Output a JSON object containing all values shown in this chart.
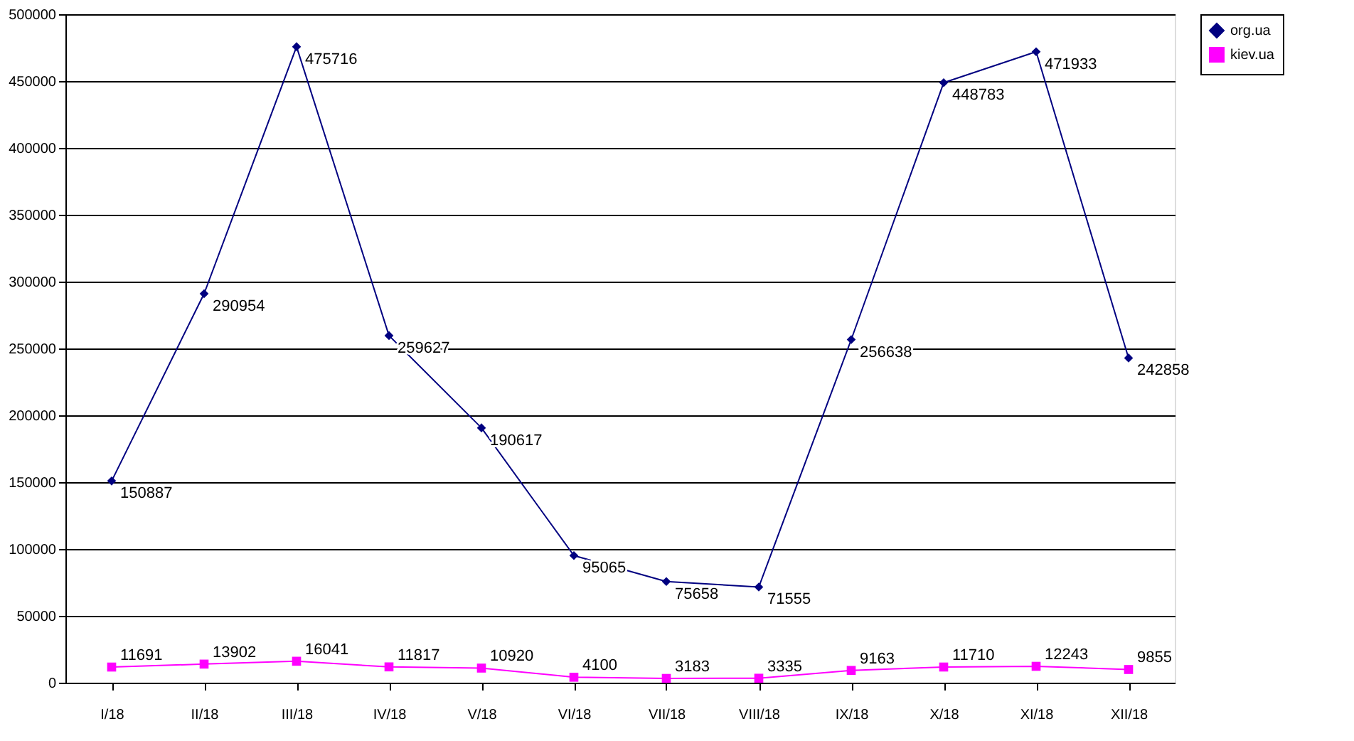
{
  "chart_data": {
    "type": "line",
    "categories": [
      "I/18",
      "II/18",
      "III/18",
      "IV/18",
      "V/18",
      "VI/18",
      "VII/18",
      "VIII/18",
      "IX/18",
      "X/18",
      "XI/18",
      "XII/18"
    ],
    "series": [
      {
        "name": "org.ua",
        "color": "#000080",
        "marker": "diamond",
        "values": [
          150887,
          290954,
          475716,
          259627,
          190617,
          95065,
          75658,
          71555,
          256638,
          448783,
          471933,
          242858
        ]
      },
      {
        "name": "kiev.ua",
        "color": "#ff00ff",
        "marker": "square",
        "values": [
          11691,
          13902,
          16041,
          11817,
          10920,
          4100,
          3183,
          3335,
          9163,
          11710,
          12243,
          9855
        ]
      }
    ],
    "ylim": [
      0,
      500000
    ],
    "yticks": [
      0,
      50000,
      100000,
      150000,
      200000,
      250000,
      300000,
      350000,
      400000,
      450000,
      500000
    ],
    "grid": "y",
    "legend": "right",
    "data_labels": true,
    "line_style": "solid"
  }
}
